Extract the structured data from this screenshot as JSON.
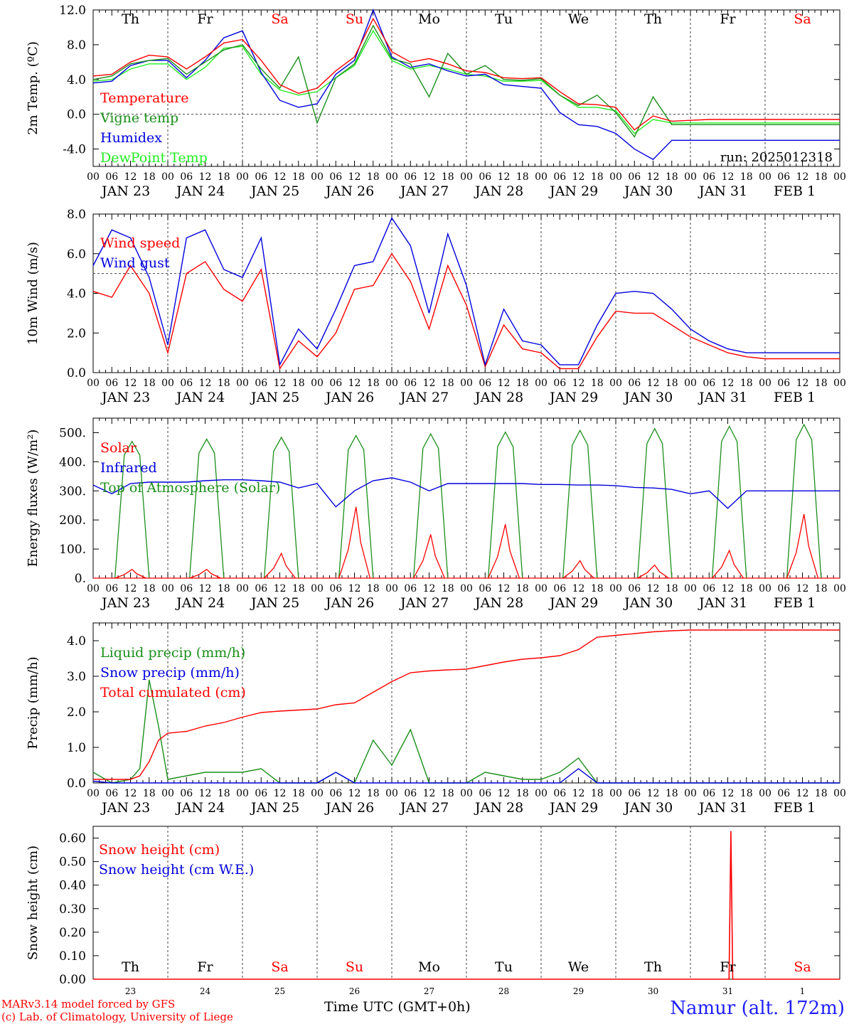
{
  "chart_data": [
    {
      "type": "line",
      "ylabel": "2m Temp. (ºC)",
      "ylim": [
        -6,
        12
      ],
      "yticks": [
        "12.0",
        "8.0",
        "4.0",
        "0.0",
        "-4.0"
      ],
      "ytick_values": [
        12,
        8,
        4,
        0,
        -4
      ],
      "reference_line": 0,
      "day_names": [
        "Th",
        "Fr",
        "Sa",
        "Su",
        "Mo",
        "Tu",
        "We",
        "Th",
        "Fr",
        "Sa"
      ],
      "run_label": "run: 2025012318",
      "x_hours": [
        0,
        6,
        12,
        18,
        24,
        30,
        36,
        42,
        48,
        54,
        60,
        66,
        72,
        78,
        84,
        90,
        96,
        102,
        108,
        114,
        120,
        126,
        132,
        138,
        144,
        150,
        156,
        162,
        168,
        174,
        180,
        186,
        192,
        198,
        204,
        210,
        216,
        222,
        228,
        234,
        240
      ],
      "series": [
        {
          "name": "Temperature",
          "color": "#ff0000",
          "values": [
            4.4,
            4.6,
            6.0,
            6.8,
            6.6,
            5.2,
            6.6,
            8.2,
            8.6,
            6.2,
            3.4,
            2.4,
            3.0,
            5.0,
            6.6,
            11.0,
            7.2,
            6.0,
            6.4,
            5.8,
            5.0,
            4.8,
            4.2,
            4.1,
            4.2,
            2.6,
            1.2,
            1.1,
            0.8,
            -1.8,
            -0.2,
            -0.8,
            -0.7,
            -0.6,
            -0.6,
            -0.6,
            -0.6,
            -0.6,
            -0.6,
            -0.6,
            -0.6
          ]
        },
        {
          "name": "Vigne temp",
          "color": "#1a8f1a",
          "values": [
            4.0,
            4.4,
            5.8,
            6.2,
            6.4,
            4.6,
            6.0,
            7.4,
            8.0,
            5.2,
            3.0,
            6.6,
            -1.0,
            4.2,
            5.8,
            10.2,
            6.4,
            5.8,
            2.0,
            7.0,
            4.6,
            5.6,
            4.0,
            3.9,
            4.1,
            2.2,
            1.0,
            2.2,
            0.2,
            -2.6,
            2.0,
            -1.2,
            -1.2,
            -1.2,
            -1.2,
            -1.2,
            -1.2,
            -1.2,
            -1.2,
            -1.2,
            -1.2
          ]
        },
        {
          "name": "Humidex",
          "color": "#0000dd",
          "values": [
            3.6,
            3.8,
            5.6,
            6.2,
            6.2,
            4.2,
            6.2,
            8.8,
            9.6,
            4.8,
            1.6,
            0.8,
            1.2,
            4.6,
            6.2,
            12.0,
            6.6,
            5.4,
            5.8,
            5.0,
            4.4,
            4.6,
            3.4,
            3.2,
            3.0,
            0.2,
            -1.2,
            -1.4,
            -2.2,
            -4.0,
            -5.2,
            -3.0,
            -3.0,
            -3.0,
            -3.0,
            -3.0,
            -3.0,
            -3.0,
            -3.0,
            -3.0,
            -3.0
          ]
        },
        {
          "name": "DewPoint Temp",
          "color": "#22ee22",
          "values": [
            3.8,
            4.0,
            5.2,
            5.8,
            5.8,
            4.0,
            5.4,
            7.6,
            7.8,
            4.6,
            2.8,
            2.2,
            2.6,
            4.2,
            5.6,
            9.6,
            6.2,
            5.2,
            5.6,
            5.2,
            4.6,
            4.4,
            3.8,
            3.8,
            3.9,
            2.2,
            0.8,
            0.8,
            0.4,
            -2.2,
            -0.6,
            -1.0,
            -1.0,
            -1.0,
            -1.0,
            -1.0,
            -1.0,
            -1.0,
            -1.0,
            -1.0,
            -1.0
          ]
        }
      ]
    },
    {
      "type": "line",
      "ylabel": "10m Wind (m/s)",
      "ylim": [
        0,
        8
      ],
      "yticks": [
        "8.0",
        "6.0",
        "4.0",
        "2.0",
        "0.0"
      ],
      "ytick_values": [
        8,
        6,
        4,
        2,
        0
      ],
      "reference_line": 5,
      "x_hours": [
        0,
        6,
        12,
        18,
        24,
        30,
        36,
        42,
        48,
        54,
        60,
        66,
        72,
        78,
        84,
        90,
        96,
        102,
        108,
        114,
        120,
        126,
        132,
        138,
        144,
        150,
        156,
        162,
        168,
        174,
        180,
        186,
        192,
        198,
        204,
        210,
        216,
        222,
        228,
        234,
        240
      ],
      "series": [
        {
          "name": "Wind speed",
          "color": "#ff0000",
          "values": [
            4.1,
            3.8,
            5.4,
            4.0,
            1.0,
            5.0,
            5.6,
            4.2,
            3.6,
            5.2,
            0.2,
            1.6,
            0.8,
            2.0,
            4.2,
            4.4,
            6.0,
            4.6,
            2.2,
            5.4,
            3.4,
            0.3,
            2.4,
            1.2,
            1.0,
            0.2,
            0.2,
            1.8,
            3.1,
            3.0,
            3.0,
            2.4,
            1.8,
            1.4,
            1.0,
            0.8,
            0.7,
            0.7,
            0.7,
            0.7,
            0.7
          ]
        },
        {
          "name": "Wind gust",
          "color": "#0000dd",
          "values": [
            5.4,
            7.2,
            6.8,
            4.8,
            1.4,
            6.8,
            7.2,
            5.2,
            4.8,
            6.8,
            0.4,
            2.2,
            1.2,
            3.2,
            5.4,
            5.6,
            7.8,
            6.4,
            3.0,
            7.0,
            4.4,
            0.4,
            3.2,
            1.6,
            1.4,
            0.4,
            0.4,
            2.4,
            4.0,
            4.1,
            4.0,
            3.2,
            2.2,
            1.6,
            1.2,
            1.0,
            1.0,
            1.0,
            1.0,
            1.0,
            1.0
          ]
        }
      ]
    },
    {
      "type": "line",
      "ylabel": "Energy fluxes (W/m²)",
      "ylim": [
        0,
        550
      ],
      "yticks": [
        "500.",
        "400.",
        "300.",
        "200.",
        "100.",
        "0."
      ],
      "ytick_values": [
        500,
        400,
        300,
        200,
        100,
        0
      ],
      "solar_peaks": [
        30,
        30,
        85,
        245,
        150,
        185,
        60,
        45,
        95,
        220
      ],
      "toa_peaks": [
        470,
        478,
        484,
        490,
        496,
        502,
        508,
        514,
        522,
        528
      ],
      "infrared_hours": [
        0,
        6,
        12,
        18,
        24,
        30,
        36,
        42,
        48,
        54,
        60,
        66,
        72,
        78,
        84,
        90,
        96,
        102,
        108,
        114,
        120,
        126,
        132,
        138,
        144,
        150,
        156,
        162,
        168,
        174,
        180,
        186,
        192,
        198,
        204,
        210,
        216,
        222,
        228,
        234,
        240
      ],
      "infrared_values": [
        320,
        290,
        325,
        330,
        330,
        330,
        335,
        338,
        338,
        335,
        330,
        310,
        325,
        245,
        300,
        335,
        345,
        330,
        300,
        325,
        325,
        325,
        325,
        325,
        322,
        322,
        320,
        320,
        318,
        312,
        310,
        305,
        290,
        300,
        240,
        300,
        300,
        300,
        300,
        300,
        300
      ],
      "series": [
        {
          "name": "Solar",
          "color": "#ff0000"
        },
        {
          "name": "Infrared",
          "color": "#0000dd"
        },
        {
          "name": "Top of Atmosphere (Solar)",
          "color": "#1a8f1a"
        }
      ]
    },
    {
      "type": "line",
      "ylabel": "Precip (mm/h)",
      "ylim": [
        0,
        4.5
      ],
      "yticks": [
        "4.0",
        "3.0",
        "2.0",
        "1.0",
        "0.0"
      ],
      "ytick_values": [
        4,
        3,
        2,
        1,
        0
      ],
      "x_hours": [
        0,
        6,
        12,
        15,
        18,
        21,
        24,
        30,
        36,
        42,
        48,
        54,
        60,
        66,
        72,
        78,
        84,
        90,
        96,
        102,
        108,
        114,
        120,
        126,
        132,
        138,
        144,
        150,
        156,
        162,
        168,
        174,
        180,
        186,
        192,
        198,
        204,
        210,
        216,
        222,
        228,
        234,
        240
      ],
      "series": [
        {
          "name": "Liquid precip (mm/h)",
          "color": "#1a8f1a",
          "values": [
            0.3,
            0.0,
            0.1,
            0.4,
            2.9,
            1.6,
            0.1,
            0.2,
            0.3,
            0.3,
            0.3,
            0.4,
            0.0,
            0.0,
            0.0,
            0.3,
            0.0,
            1.2,
            0.5,
            1.5,
            0.0,
            0.0,
            0.0,
            0.3,
            0.2,
            0.1,
            0.1,
            0.3,
            0.7,
            0.0,
            0.0,
            0.0,
            0.0,
            0.0,
            0.0,
            0.0,
            0.0,
            0.0,
            0.0,
            0.0,
            0.0,
            0.0,
            0.0
          ]
        },
        {
          "name": "Snow precip (mm/h)",
          "color": "#0000dd",
          "values": [
            0.05,
            0.0,
            0.0,
            0.0,
            0.0,
            0.0,
            0.0,
            0.0,
            0.0,
            0.0,
            0.0,
            0.0,
            0.0,
            0.0,
            0.0,
            0.3,
            0.0,
            0.0,
            0.0,
            0.0,
            0.0,
            0.0,
            0.0,
            0.0,
            0.0,
            0.0,
            0.0,
            0.0,
            0.4,
            0.0,
            0.0,
            0.0,
            0.0,
            0.0,
            0.0,
            0.0,
            0.0,
            0.0,
            0.0,
            0.0,
            0.0,
            0.0,
            0.0
          ]
        },
        {
          "name": "Total cumulated (cm)",
          "color": "#ff0000",
          "values": [
            0.1,
            0.1,
            0.1,
            0.2,
            0.6,
            1.2,
            1.4,
            1.45,
            1.6,
            1.7,
            1.85,
            1.98,
            2.02,
            2.05,
            2.08,
            2.2,
            2.25,
            2.55,
            2.85,
            3.1,
            3.15,
            3.18,
            3.2,
            3.3,
            3.4,
            3.48,
            3.52,
            3.58,
            3.75,
            4.1,
            4.15,
            4.2,
            4.25,
            4.28,
            4.3,
            4.3,
            4.3,
            4.3,
            4.3,
            4.3,
            4.3,
            4.3,
            4.3
          ]
        }
      ]
    },
    {
      "type": "line",
      "ylabel": "Snow height (cm)",
      "ylim": [
        0,
        0.65
      ],
      "yticks": [
        "0.60",
        "0.50",
        "0.40",
        "0.30",
        "0.20",
        "0.10",
        "0.00"
      ],
      "ytick_values": [
        0.6,
        0.5,
        0.4,
        0.3,
        0.2,
        0.1,
        0.0
      ],
      "day_names": [
        "Th",
        "Fr",
        "Sa",
        "Su",
        "Mo",
        "Tu",
        "We",
        "Th",
        "Fr",
        "Sa"
      ],
      "day_numbers": [
        "23",
        "24",
        "25",
        "26",
        "27",
        "28",
        "29",
        "30",
        "31",
        "1"
      ],
      "snow_spike": {
        "hour": 205,
        "value": 0.63
      },
      "series": [
        {
          "name": "Snow height (cm)",
          "color": "#ff0000"
        },
        {
          "name": "Snow height (cm W.E.)",
          "color": "#0000dd"
        }
      ]
    }
  ],
  "x_axis": {
    "hour_labels": [
      "00",
      "06",
      "12",
      "18"
    ],
    "day_labels": [
      "JAN 23",
      "JAN 24",
      "JAN 25",
      "JAN 26",
      "JAN 27",
      "JAN 28",
      "JAN 29",
      "JAN 30",
      "JAN 31",
      "FEB  1"
    ],
    "title": "Time UTC (GMT+0h)"
  },
  "weekend_color": "#ff0000",
  "footer": {
    "model": "MARv3.14 model forced by GFS",
    "credit": "(c) Lab. of Climatology, University of Liege",
    "station": "Namur (alt. 172m)"
  }
}
